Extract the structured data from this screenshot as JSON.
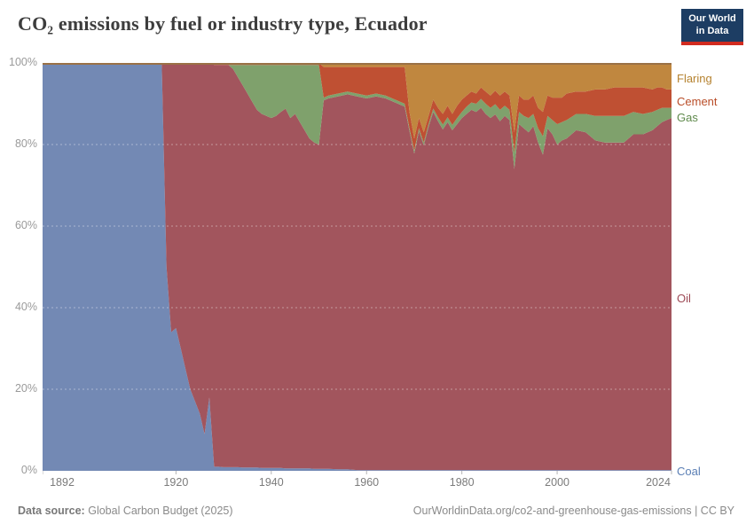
{
  "header": {
    "title": "CO₂ emissions by fuel or industry type, Ecuador",
    "logo": {
      "line1": "Our World",
      "line2": "in Data"
    }
  },
  "chart_data": {
    "type": "area",
    "stacked": "percent",
    "title": "CO₂ emissions by fuel or industry type, Ecuador",
    "x_range": [
      1892,
      2024
    ],
    "y_range": [
      0,
      100
    ],
    "x_ticks": [
      1892,
      1920,
      1940,
      1960,
      1980,
      2000,
      2024
    ],
    "y_ticks": [
      "0%",
      "20%",
      "40%",
      "60%",
      "80%",
      "100%"
    ],
    "grid": "dashed",
    "legend_position": "right",
    "years": [
      1892,
      1900,
      1910,
      1916,
      1917,
      1918,
      1919,
      1920,
      1921,
      1922,
      1923,
      1924,
      1925,
      1926,
      1927,
      1928,
      1929,
      1930,
      1931,
      1932,
      1933,
      1934,
      1935,
      1936,
      1937,
      1938,
      1939,
      1940,
      1941,
      1942,
      1943,
      1944,
      1945,
      1946,
      1947,
      1948,
      1949,
      1950,
      1951,
      1952,
      1954,
      1956,
      1958,
      1960,
      1962,
      1964,
      1966,
      1968,
      1969,
      1970,
      1971,
      1972,
      1973,
      1974,
      1975,
      1976,
      1977,
      1978,
      1979,
      1980,
      1981,
      1982,
      1983,
      1984,
      1985,
      1986,
      1987,
      1988,
      1989,
      1990,
      1991,
      1992,
      1993,
      1994,
      1995,
      1996,
      1997,
      1998,
      1999,
      2000,
      2001,
      2002,
      2004,
      2006,
      2008,
      2010,
      2012,
      2014,
      2016,
      2018,
      2020,
      2021,
      2022,
      2023,
      2024
    ],
    "series": [
      {
        "name": "Coal",
        "color": "#7389b4",
        "label_color": "#5b7fb5",
        "values": [
          100,
          100,
          100,
          100,
          100,
          50,
          34,
          35,
          30,
          25,
          20,
          17,
          14,
          9,
          18,
          1,
          1,
          0.9,
          0.9,
          0.9,
          0.9,
          0.8,
          0.8,
          0.8,
          0.8,
          0.7,
          0.7,
          0.7,
          0.7,
          0.7,
          0.6,
          0.6,
          0.6,
          0.6,
          0.6,
          0.6,
          0.5,
          0.5,
          0.5,
          0.5,
          0.4,
          0.4,
          0.2,
          0.2,
          0.2,
          0.2,
          0.2,
          0.2,
          0.2,
          0.2,
          0.2,
          0.2,
          0.2,
          0.2,
          0.2,
          0.2,
          0.2,
          0.2,
          0.2,
          0.2,
          0.2,
          0.2,
          0.2,
          0.2,
          0.2,
          0.2,
          0.2,
          0.2,
          0.2,
          0.2,
          0.2,
          0.2,
          0.2,
          0.2,
          0.2,
          0.2,
          0.2,
          0.2,
          0.2,
          0.2,
          0.2,
          0.2,
          0.2,
          0.2,
          0.2,
          0.2,
          0.2,
          0.2,
          0.2,
          0.2,
          0.2,
          0.2,
          0.2,
          0.2,
          0.2
        ]
      },
      {
        "name": "Oil",
        "color": "#a2555d",
        "label_color": "#9d4955",
        "values": [
          0,
          0,
          0,
          0,
          0,
          50,
          66,
          65,
          70,
          75,
          80,
          83,
          86,
          91,
          82,
          98.5,
          98.5,
          98.6,
          98.6,
          97.6,
          95.6,
          93.7,
          91.7,
          89.7,
          87.7,
          86.8,
          86.3,
          85.8,
          86.3,
          87.3,
          88.2,
          85.9,
          86.9,
          84.9,
          82.9,
          80.9,
          80,
          79.5,
          90.3,
          90.8,
          91.4,
          91.9,
          91.6,
          91.1,
          91.6,
          91.1,
          90.1,
          89.1,
          83.1,
          77.6,
          83.1,
          79.6,
          84.1,
          87.8,
          85.5,
          83.5,
          85.3,
          83.3,
          84.8,
          86.3,
          87.3,
          88.3,
          87.8,
          88.8,
          87.3,
          86.3,
          87.2,
          85.5,
          86.8,
          85.8,
          73.8,
          84.8,
          83.8,
          82.8,
          84.3,
          80.3,
          77.3,
          83.8,
          82.3,
          79.8,
          80.8,
          81.3,
          83.3,
          82.8,
          80.8,
          80.3,
          80.3,
          80.3,
          82.3,
          82.3,
          83.3,
          84.3,
          85.3,
          85.8,
          86.3
        ]
      },
      {
        "name": "Gas",
        "color": "#7fa16c",
        "label_color": "#5f8a4c",
        "values": [
          0,
          0,
          0,
          0,
          0,
          0,
          0,
          0,
          0,
          0,
          0,
          0,
          0,
          0,
          0,
          0,
          0,
          0,
          0,
          1,
          3,
          5,
          7,
          9,
          11,
          12,
          12.5,
          13,
          12.5,
          11.5,
          10.7,
          13,
          12,
          14,
          16,
          18,
          19,
          19.5,
          0.7,
          0.7,
          0.7,
          0.7,
          0.7,
          0.7,
          0.7,
          0.7,
          0.7,
          0.7,
          0.7,
          0.7,
          0.7,
          0.7,
          0.7,
          0.8,
          1,
          1.2,
          1.2,
          1.3,
          1.5,
          1.5,
          1.8,
          1.8,
          2,
          2.2,
          2.5,
          2.5,
          2.5,
          2.8,
          2.5,
          2.5,
          4,
          3,
          3,
          3.5,
          3,
          3.5,
          4.5,
          3,
          3.5,
          5,
          4.5,
          4.5,
          4,
          4.5,
          6,
          6.5,
          6.5,
          6.5,
          5.5,
          5,
          4.5,
          4,
          3.5,
          3,
          2.5
        ]
      },
      {
        "name": "Cement",
        "color": "#bf5033",
        "label_color": "#b94d28",
        "values": [
          0,
          0,
          0,
          0,
          0,
          0,
          0,
          0,
          0,
          0,
          0,
          0,
          0,
          0,
          0,
          0.5,
          0.5,
          0.5,
          0.5,
          0.5,
          0.5,
          0.5,
          0.5,
          0.5,
          0.5,
          0.5,
          0.5,
          0.5,
          0.5,
          0.5,
          0.5,
          0.5,
          0.5,
          0.5,
          0.5,
          0.5,
          0.5,
          0.5,
          7.5,
          7,
          6.5,
          6,
          6.5,
          7,
          6.5,
          7,
          8,
          9,
          4,
          3,
          2.5,
          2.5,
          2,
          2.2,
          2.3,
          2.6,
          2.8,
          2.7,
          3,
          3,
          2.7,
          2.7,
          2.5,
          2.8,
          3,
          3,
          3.3,
          3.5,
          3.5,
          3.5,
          5,
          4,
          4,
          4.5,
          4.5,
          5,
          6,
          5,
          5.5,
          6.5,
          6,
          6.5,
          5.5,
          5.5,
          6.5,
          6.5,
          7,
          7,
          6,
          6.5,
          5.5,
          5.5,
          5,
          4.5,
          4.5
        ]
      },
      {
        "name": "Flaring",
        "color": "#c0873f",
        "label_color": "#b5822f",
        "values": [
          0,
          0,
          0,
          0,
          0,
          0,
          0,
          0,
          0,
          0,
          0,
          0,
          0,
          0,
          0,
          0,
          0,
          0,
          0,
          0,
          0,
          0,
          0,
          0,
          0,
          0,
          0,
          0,
          0,
          0,
          0,
          0,
          0,
          0,
          0,
          0,
          0,
          0,
          1,
          1,
          1,
          1,
          1,
          1,
          1,
          1,
          1,
          1,
          12,
          18.5,
          13.5,
          17,
          13,
          9,
          11,
          12.5,
          10.5,
          12.5,
          10.5,
          9,
          8,
          7,
          7.5,
          6,
          7,
          8,
          6.8,
          8,
          7,
          8,
          17,
          8,
          9,
          9,
          8,
          11,
          12,
          8,
          8.5,
          8.5,
          8.5,
          7.5,
          7,
          7,
          6.5,
          6.5,
          6,
          6,
          6,
          6,
          6.5,
          6,
          6,
          6.5,
          6.5
        ]
      }
    ]
  },
  "footer": {
    "source_label": "Data source:",
    "source_value": "Global Carbon Budget (2025)",
    "rights": "OurWorldinData.org/co2-and-greenhouse-gas-emissions | CC BY"
  }
}
